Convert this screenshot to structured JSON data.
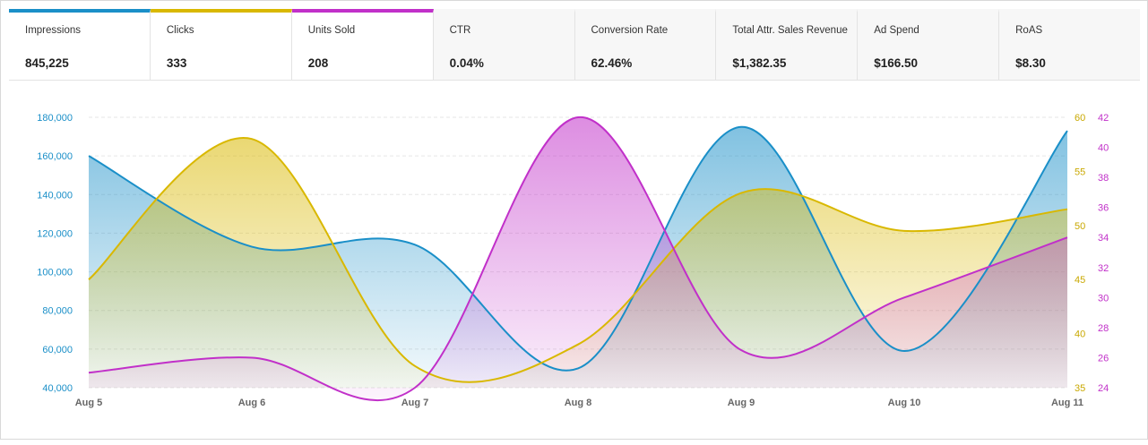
{
  "metrics": [
    {
      "label": "Impressions",
      "value": "845,225",
      "accent": "#1a8fc8",
      "active": true
    },
    {
      "label": "Clicks",
      "value": "333",
      "accent": "#d9b800",
      "active": true
    },
    {
      "label": "Units Sold",
      "value": "208",
      "accent": "#c130c9",
      "active": true
    },
    {
      "label": "CTR",
      "value": "0.04%",
      "accent": "",
      "active": false
    },
    {
      "label": "Conversion Rate",
      "value": "62.46%",
      "accent": "",
      "active": false
    },
    {
      "label": "Total Attr. Sales Revenue",
      "value": "$1,382.35",
      "accent": "",
      "active": false
    },
    {
      "label": "Ad Spend",
      "value": "$166.50",
      "accent": "",
      "active": false
    },
    {
      "label": "RoAS",
      "value": "$8.30",
      "accent": "",
      "active": false
    }
  ],
  "chart_data": {
    "type": "area",
    "categories": [
      "Aug 5",
      "Aug 6",
      "Aug 7",
      "Aug 8",
      "Aug 9",
      "Aug 10",
      "Aug 11"
    ],
    "axes": {
      "left": {
        "min": 40000,
        "max": 180000,
        "ticks": [
          "40,000",
          "60,000",
          "80,000",
          "100,000",
          "120,000",
          "140,000",
          "160,000",
          "180,000"
        ],
        "color": "#1a8fc8"
      },
      "right1": {
        "min": 35,
        "max": 60,
        "ticks": [
          "35",
          "40",
          "45",
          "50",
          "55",
          "60"
        ],
        "color": "#c9a800"
      },
      "right2": {
        "min": 24,
        "max": 42,
        "ticks": [
          "24",
          "26",
          "28",
          "30",
          "32",
          "34",
          "36",
          "38",
          "40",
          "42"
        ],
        "color": "#c130c9"
      }
    },
    "series": [
      {
        "name": "Impressions",
        "axis": "left",
        "color": "#1a8fc8",
        "values": [
          160000,
          113000,
          114000,
          50000,
          175000,
          59000,
          173000
        ]
      },
      {
        "name": "Clicks",
        "axis": "right1",
        "color": "#d9b800",
        "values": [
          45,
          58,
          37,
          39,
          53,
          49.5,
          51.5
        ]
      },
      {
        "name": "Units Sold",
        "axis": "right2",
        "color": "#c130c9",
        "values": [
          25,
          26,
          24,
          42,
          26.5,
          30,
          34
        ]
      }
    ],
    "grid": true,
    "legend": "top"
  }
}
